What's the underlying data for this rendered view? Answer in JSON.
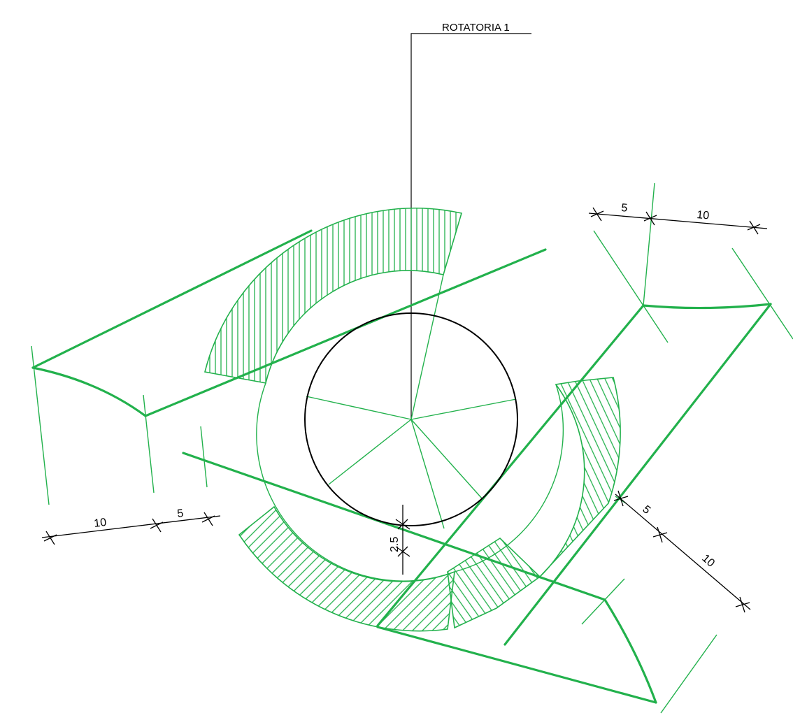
{
  "title": "ROTATORIA  1",
  "colors": {
    "background": "#ffffff",
    "geometry": "#22b14c",
    "circle": "#000000",
    "dimension": "#000000"
  },
  "dimensions": {
    "top_right_a": "5",
    "top_right_b": "10",
    "bottom_left_a": "10",
    "bottom_left_b": "5",
    "right_a": "5",
    "right_b": "10",
    "center_offset": "2.5"
  }
}
